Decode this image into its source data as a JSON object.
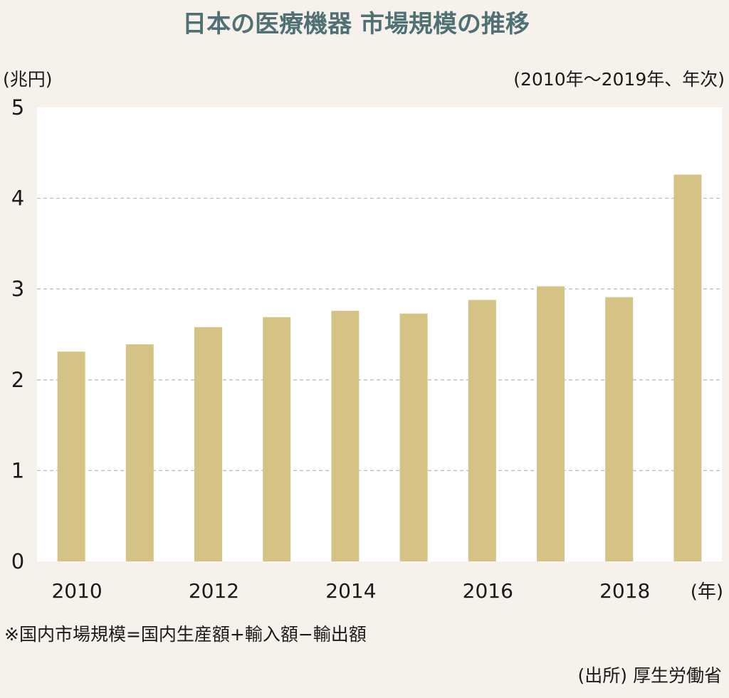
{
  "title": "日本の医療機器 市場規模の推移",
  "unit_label": "(兆円)",
  "period_label": "(2010年〜2019年、年次)",
  "x_unit_label": "(年)",
  "note": "※国内市場規模=国内生産額+輸入額−輸出額",
  "source": "(出所) 厚生労働省",
  "colors": {
    "background": "#f6f1eb",
    "plot_background": "#ffffff",
    "bar": "#d4c384",
    "title": "#4f7075",
    "grid": "#bdbdbd"
  },
  "chart_data": {
    "type": "bar",
    "title": "日本の医療機器 市場規模の推移",
    "xlabel": "(年)",
    "ylabel": "(兆円)",
    "categories": [
      "2010",
      "2011",
      "2012",
      "2013",
      "2014",
      "2015",
      "2016",
      "2017",
      "2018",
      "2019"
    ],
    "values": [
      2.31,
      2.39,
      2.58,
      2.69,
      2.76,
      2.73,
      2.88,
      3.03,
      2.91,
      4.26
    ],
    "x_tick_labels": [
      "2010",
      "2012",
      "2014",
      "2016",
      "2018"
    ],
    "y_ticks": [
      "0",
      "1",
      "2",
      "3",
      "4",
      "5"
    ],
    "ylim": [
      0,
      5
    ],
    "grid": "horizontal dashed",
    "legend": "none"
  }
}
